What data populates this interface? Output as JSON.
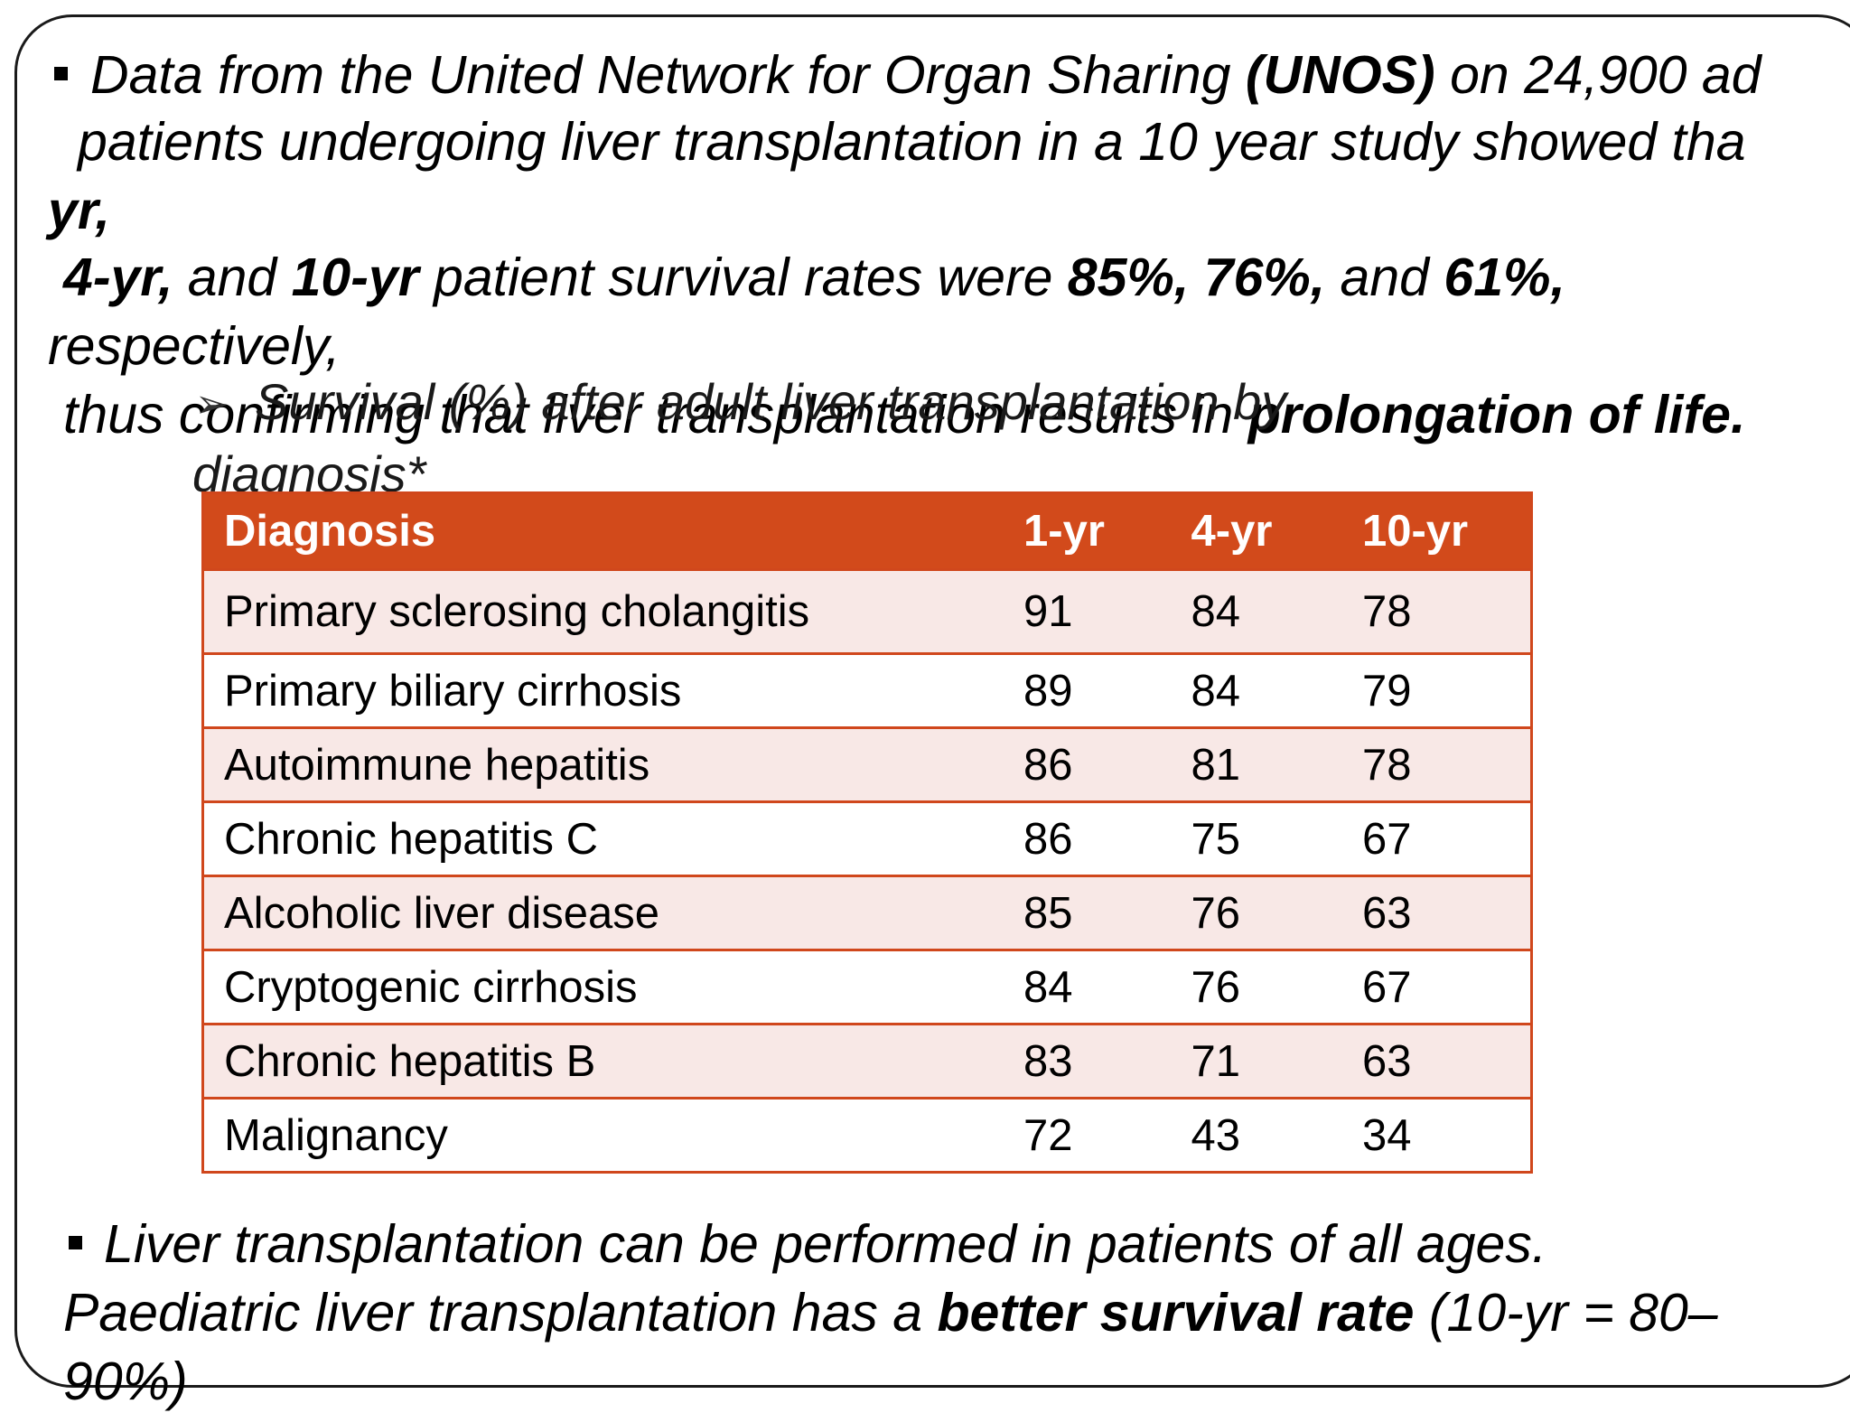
{
  "bullet1": {
    "line1_pre": "Data from the United Network for Organ Sharing ",
    "line1_bold": "(UNOS)",
    "line1_post": " on 24,900 ad",
    "line2": "patients undergoing liver transplantation in a 10 year study showed tha",
    "line3_bold": "yr,",
    "line4_bold1": "4-yr,",
    "line4_mid1": " and ",
    "line4_bold2": "10-yr",
    "line4_mid2": " patient survival rates were ",
    "line4_bold3": "85%, 76%,",
    "line4_mid3": " and ",
    "line4_bold4": "61%,",
    "line5": "respectively,",
    "line6_pre": "thus confirming that liver transplantation results in ",
    "line6_bold": "prolongation of life."
  },
  "table_section": {
    "heading_line1": "Survival (%) after adult liver transplantation by",
    "heading_line2": "diagnosis*",
    "arrow": "➢"
  },
  "table": {
    "headers": [
      "Diagnosis",
      "1-yr",
      "4-yr",
      "10-yr"
    ],
    "rows": [
      [
        "Primary sclerosing cholangitis",
        "91",
        "84",
        "78"
      ],
      [
        "Primary biliary cirrhosis",
        "89",
        "84",
        "79"
      ],
      [
        "Autoimmune hepatitis",
        "86",
        "81",
        "78"
      ],
      [
        "Chronic hepatitis C",
        "86",
        "75",
        "67"
      ],
      [
        "Alcoholic liver disease",
        "85",
        "76",
        "63"
      ],
      [
        "Cryptogenic cirrhosis",
        "84",
        "76",
        "67"
      ],
      [
        "Chronic hepatitis B",
        "83",
        "71",
        "63"
      ],
      [
        "Malignancy",
        "72",
        "43",
        "34"
      ]
    ]
  },
  "bullet2": {
    "line1": "Liver transplantation can be performed in patients of all ages.",
    "line2_pre": "Paediatric liver transplantation has a ",
    "line2_bold": "better survival rate",
    "line2_post": " (10-yr = 80–",
    "line3": "90%)"
  },
  "colors": {
    "header_bg": "#d24a1b",
    "row_tint": "#f8e8e6",
    "border": "#d0471c"
  }
}
